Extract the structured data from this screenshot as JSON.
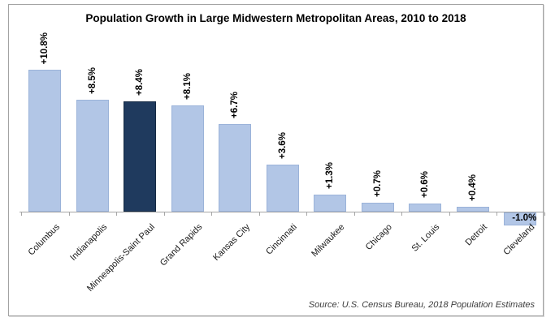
{
  "chart_data": {
    "type": "bar",
    "title": "Population Growth in Large Midwestern Metropolitan Areas, 2010 to 2018",
    "categories": [
      "Columbus",
      "Indianapolis",
      "Minneapolis-Saint Paul",
      "Grand Rapids",
      "Kansas City",
      "Cincinnati",
      "Milwaukee",
      "Chicago",
      "St. Louis",
      "Detroit",
      "Cleveland"
    ],
    "values": [
      10.8,
      8.5,
      8.4,
      8.1,
      6.7,
      3.6,
      1.3,
      0.7,
      0.6,
      0.4,
      -1.0
    ],
    "value_labels": [
      "+10.8%",
      "+8.5%",
      "+8.4%",
      "+8.1%",
      "+6.7%",
      "+3.6%",
      "+1.3%",
      "+0.7%",
      "+0.6%",
      "+0.4%",
      "-1.0%"
    ],
    "highlight_index": 2,
    "xlabel": "",
    "ylabel": "",
    "ylim": [
      -1.5,
      11.5
    ],
    "grid": false,
    "legend": false,
    "value_label_orientation": "vertical",
    "negative_value_label_orientation": "horizontal",
    "source": "Source: U.S. Census Bureau, 2018 Population Estimates",
    "colors": {
      "bar_fill": "#b2c6e6",
      "bar_border": "#9bb3d9",
      "highlight_fill": "#1f3a5e",
      "highlight_border": "#142943",
      "axis": "#a6a6a6",
      "title_text": "#000000",
      "label_text": "#000000",
      "category_text": "#1a1a1a",
      "source_text": "#3d3d3d",
      "frame_border": "#a3a3a3",
      "background": "#ffffff"
    }
  }
}
